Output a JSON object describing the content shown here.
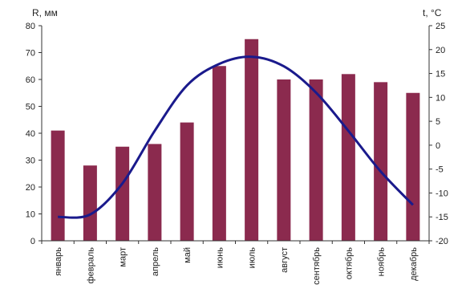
{
  "chart_data": {
    "type": "bar+line",
    "categories": [
      "январь",
      "февраль",
      "март",
      "апрель",
      "май",
      "июнь",
      "июль",
      "август",
      "сентябрь",
      "октябрь",
      "ноябрь",
      "декабрь"
    ],
    "series": [
      {
        "type": "bar",
        "axis": "left",
        "values": [
          41,
          28,
          35,
          36,
          44,
          65,
          75,
          60,
          60,
          62,
          59,
          55
        ],
        "color": "#8b2a4e"
      },
      {
        "type": "line",
        "axis": "right",
        "values": [
          -15,
          -14.5,
          -8,
          3,
          12.5,
          17,
          18.5,
          16.5,
          11,
          3,
          -5.5,
          -12.5
        ],
        "color": "#1a1a8c"
      }
    ],
    "y_left": {
      "label": "R, мм",
      "range": [
        0,
        80
      ],
      "ticks": [
        0,
        10,
        20,
        30,
        40,
        50,
        60,
        70,
        80
      ]
    },
    "y_right": {
      "label": "t, °C",
      "range": [
        -20,
        25
      ],
      "ticks": [
        25,
        20,
        15,
        10,
        5,
        0,
        -5,
        -10,
        -15,
        -20
      ]
    },
    "grid": false,
    "legend": "none"
  }
}
